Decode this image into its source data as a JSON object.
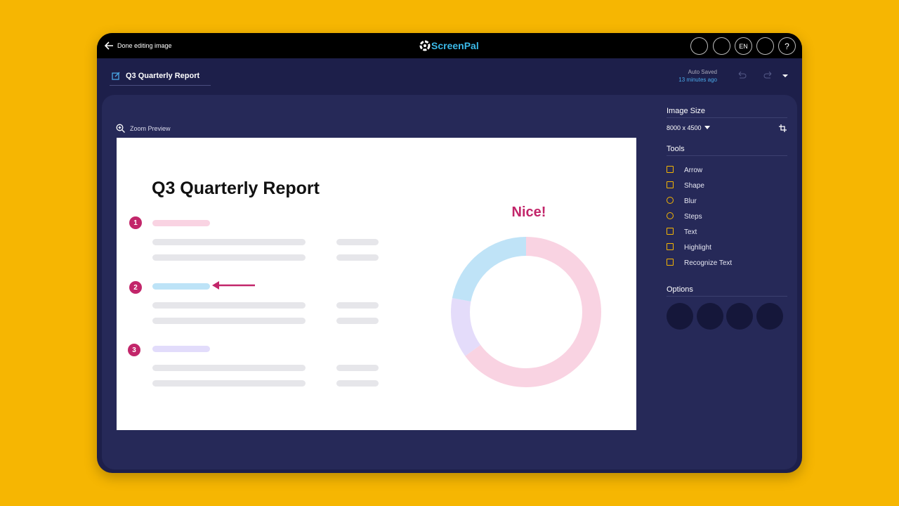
{
  "topbar": {
    "back_label": "Done editing image",
    "logo": "ScreenPal",
    "language": "EN",
    "help": "?"
  },
  "header": {
    "document_title": "Q3 Quarterly Report",
    "save_status": "Auto Saved",
    "save_time": "13 minutes ago"
  },
  "canvas": {
    "zoom_label": "Zoom Preview",
    "heading": "Q3 Quarterly Report",
    "steps": [
      "1",
      "2",
      "3"
    ],
    "annotation": "Nice!"
  },
  "sidebar": {
    "image_size_title": "Image Size",
    "image_size": "8000 x 4500",
    "tools_title": "Tools",
    "tools": [
      "Arrow",
      "Shape",
      "Blur",
      "Steps",
      "Text",
      "Highlight",
      "Recognize Text"
    ],
    "options_title": "Options"
  }
}
